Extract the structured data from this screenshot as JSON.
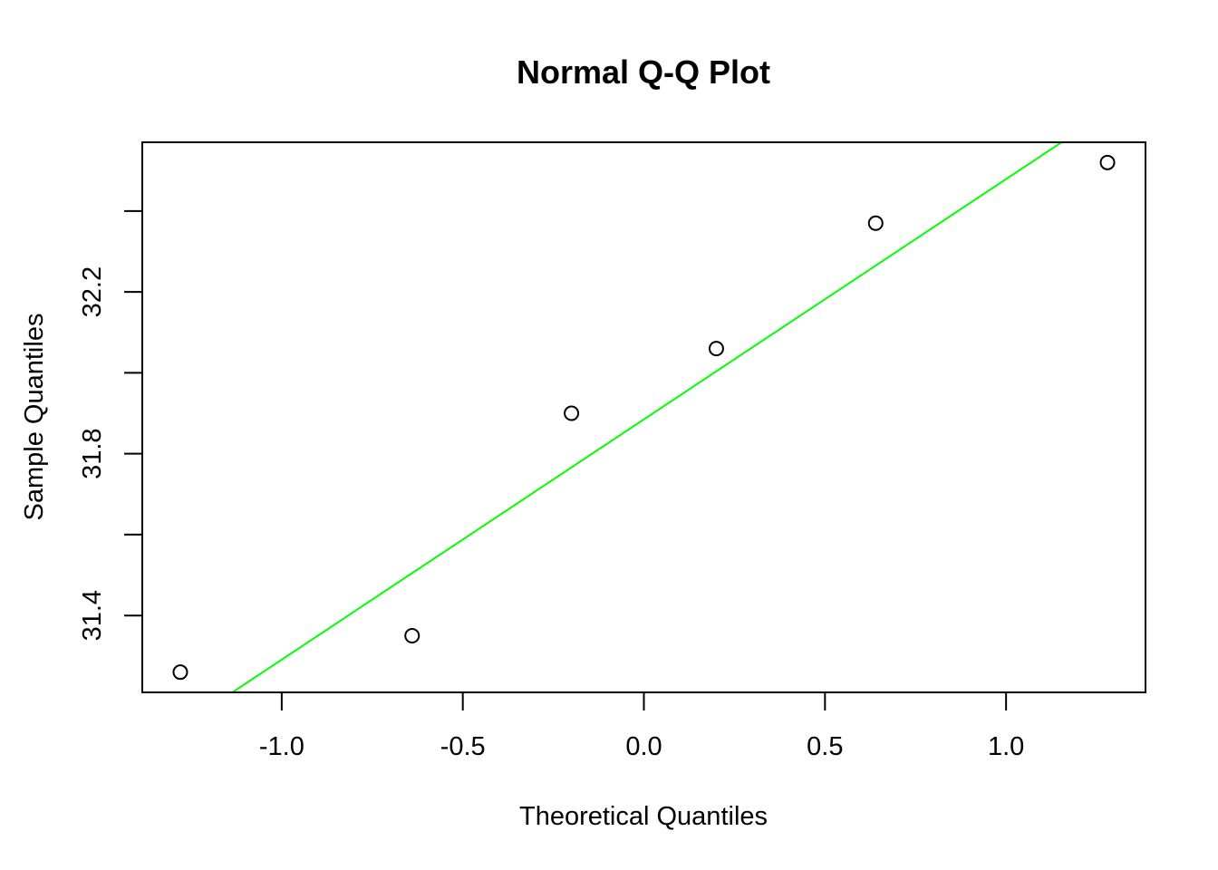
{
  "chart_data": {
    "type": "scatter",
    "title": "Normal Q-Q Plot",
    "xlabel": "Theoretical Quantiles",
    "ylabel": "Sample Quantiles",
    "xlim": [
      -1.385,
      1.385
    ],
    "ylim": [
      31.21,
      32.57
    ],
    "x_ticks": [
      -1.0,
      -0.5,
      0.0,
      0.5,
      1.0
    ],
    "x_tick_labels": [
      "-1.0",
      "-0.5",
      "0.0",
      "0.5",
      "1.0"
    ],
    "y_ticks": [
      31.4,
      31.6,
      31.8,
      32.0,
      32.2,
      32.4
    ],
    "y_tick_labels": [
      "31.4",
      "",
      "31.8",
      "",
      "32.2",
      ""
    ],
    "grid": false,
    "points": [
      {
        "x": -1.28,
        "y": 31.26
      },
      {
        "x": -0.64,
        "y": 31.35
      },
      {
        "x": -0.2,
        "y": 31.9
      },
      {
        "x": 0.2,
        "y": 32.06
      },
      {
        "x": 0.64,
        "y": 32.37
      },
      {
        "x": 1.28,
        "y": 32.52
      }
    ],
    "reference_line": {
      "color": "#00ff00",
      "intercept": 31.885,
      "slope": 0.594
    },
    "point_style": {
      "marker": "open-circle",
      "color": "#000000"
    }
  }
}
